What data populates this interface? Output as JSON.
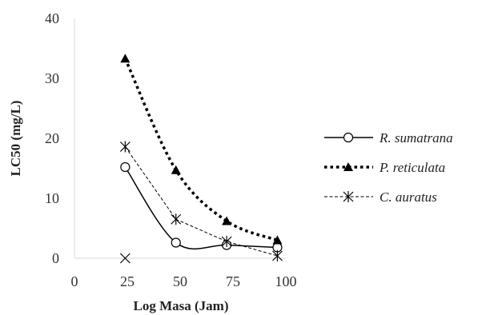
{
  "chart_data": {
    "type": "line",
    "xlabel": "Log Masa (Jam)",
    "ylabel": "LC50 (mg/L)",
    "xlim": [
      0,
      100
    ],
    "ylim": [
      0,
      40
    ],
    "xticks": [
      "0",
      "25",
      "50",
      "75",
      "100"
    ],
    "yticks": [
      "0",
      "10",
      "20",
      "30",
      "40"
    ],
    "grid": false,
    "legend_position": "right",
    "series": [
      {
        "name": "R. sumatrana",
        "line_style": "solid",
        "marker": "open-circle",
        "smooth": true,
        "x": [
          24,
          48,
          72,
          96
        ],
        "y": [
          15.2,
          2.6,
          2.2,
          1.8
        ]
      },
      {
        "name": "P. reticulata",
        "line_style": "dotted-bold",
        "marker": "filled-triangle",
        "smooth": true,
        "x": [
          24,
          48,
          72,
          96
        ],
        "y": [
          33.3,
          14.7,
          6.2,
          3.0
        ]
      },
      {
        "name": "C. auratus",
        "line_style": "dashed",
        "marker": "star-cross",
        "smooth": false,
        "x": [
          24,
          48,
          72,
          96
        ],
        "y": [
          18.6,
          6.5,
          2.8,
          0.4
        ]
      }
    ],
    "annotations": [
      {
        "marker": "x-cross",
        "x": 24,
        "y": 0
      }
    ]
  }
}
